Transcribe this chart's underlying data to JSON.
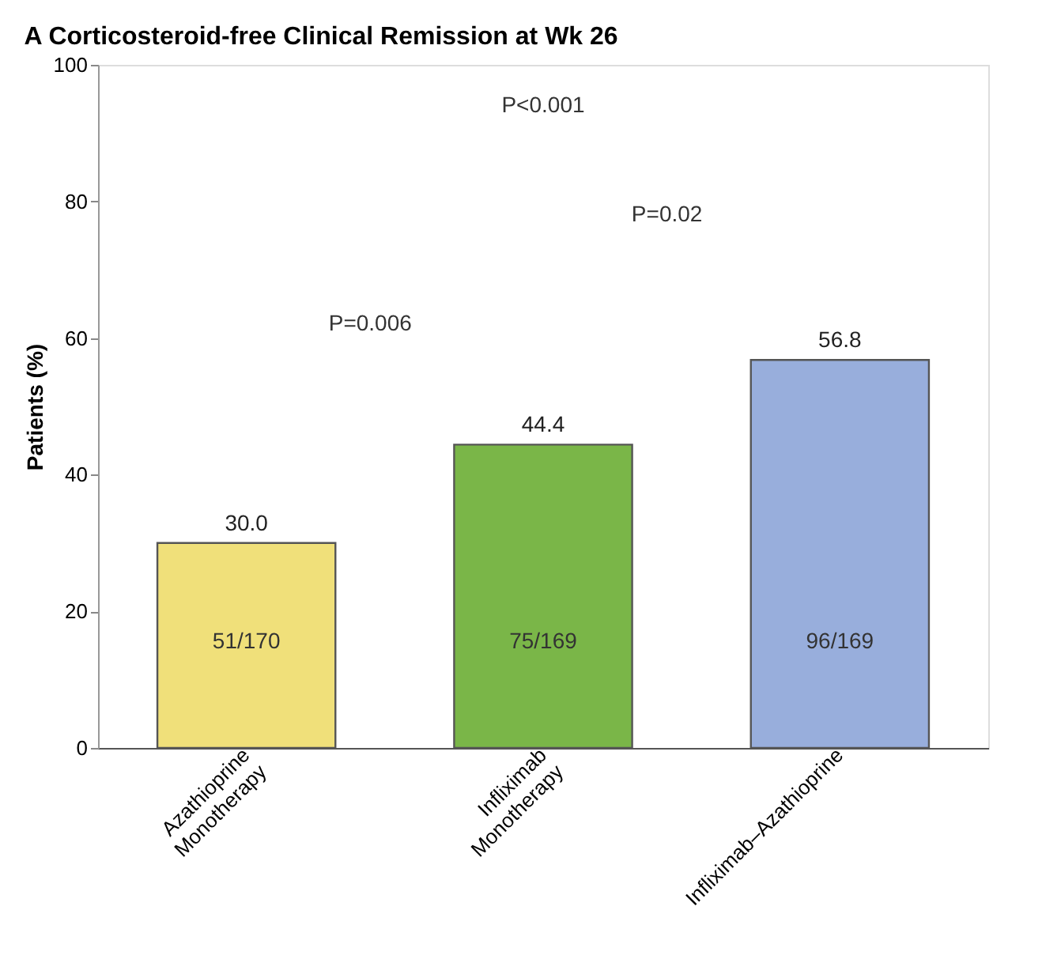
{
  "chart_data": {
    "type": "bar",
    "title": "A  Corticosteroid-free Clinical Remission at Wk 26",
    "ylabel": "Patients (%)",
    "categories": [
      "Azathioprine Monotherapy",
      "Infliximab Monotherapy",
      "Infliximab–Azathioprine"
    ],
    "values": [
      30.0,
      44.4,
      56.8
    ],
    "colors": [
      "#f0e07a",
      "#7ab648",
      "#98aedc"
    ],
    "value_labels": [
      "30.0",
      "44.4",
      "56.8"
    ],
    "ylim": [
      0,
      100
    ],
    "yticks": [
      0,
      20,
      40,
      60,
      80,
      100
    ],
    "grid": false,
    "legend": false,
    "annotations": [
      "51/170",
      "75/169",
      "96/169",
      "P=0.006",
      "P=0.02",
      "P<0.001"
    ]
  }
}
